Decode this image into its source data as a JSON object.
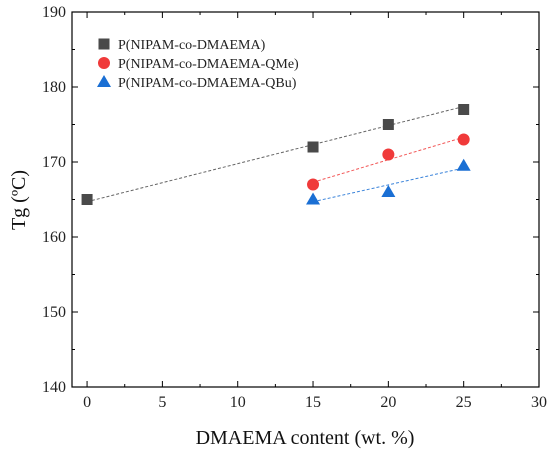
{
  "chart_data": {
    "type": "scatter",
    "xlabel": "DMAEMA content (wt. %)",
    "ylabel": "Tg (ºC)",
    "xlim": [
      -1,
      30
    ],
    "ylim": [
      140,
      190
    ],
    "xticks": [
      0,
      5,
      10,
      15,
      20,
      25,
      30
    ],
    "yticks": [
      140,
      150,
      160,
      170,
      180,
      190
    ],
    "xtick_labels": [
      "0",
      "5",
      "10",
      "15",
      "20",
      "25",
      "30"
    ],
    "ytick_labels": [
      "140",
      "150",
      "160",
      "170",
      "180",
      "190"
    ],
    "legend_position": "top-left",
    "grid": false,
    "series": [
      {
        "name": "P(NIPAM-co-DMAEMA)",
        "marker": "square",
        "color": "#4a4a4a",
        "x": [
          0,
          15,
          20,
          25
        ],
        "y": [
          165,
          172,
          175,
          177
        ],
        "fit": {
          "x0": 0,
          "y0": 164.7,
          "x1": 25,
          "y1": 177.4
        }
      },
      {
        "name": "P(NIPAM-co-DMAEMA-QMe)",
        "marker": "circle",
        "color": "#f03a3a",
        "x": [
          15,
          20,
          25
        ],
        "y": [
          167,
          171,
          173
        ],
        "fit": {
          "x0": 15,
          "y0": 167.3,
          "x1": 25,
          "y1": 173.3
        }
      },
      {
        "name": "P(NIPAM-co-DMAEMA-QBu)",
        "marker": "triangle",
        "color": "#1a6fd4",
        "x": [
          15,
          20,
          25
        ],
        "y": [
          165,
          166,
          169.5
        ],
        "fit": {
          "x0": 15,
          "y0": 164.7,
          "x1": 25,
          "y1": 169.2
        }
      }
    ]
  }
}
